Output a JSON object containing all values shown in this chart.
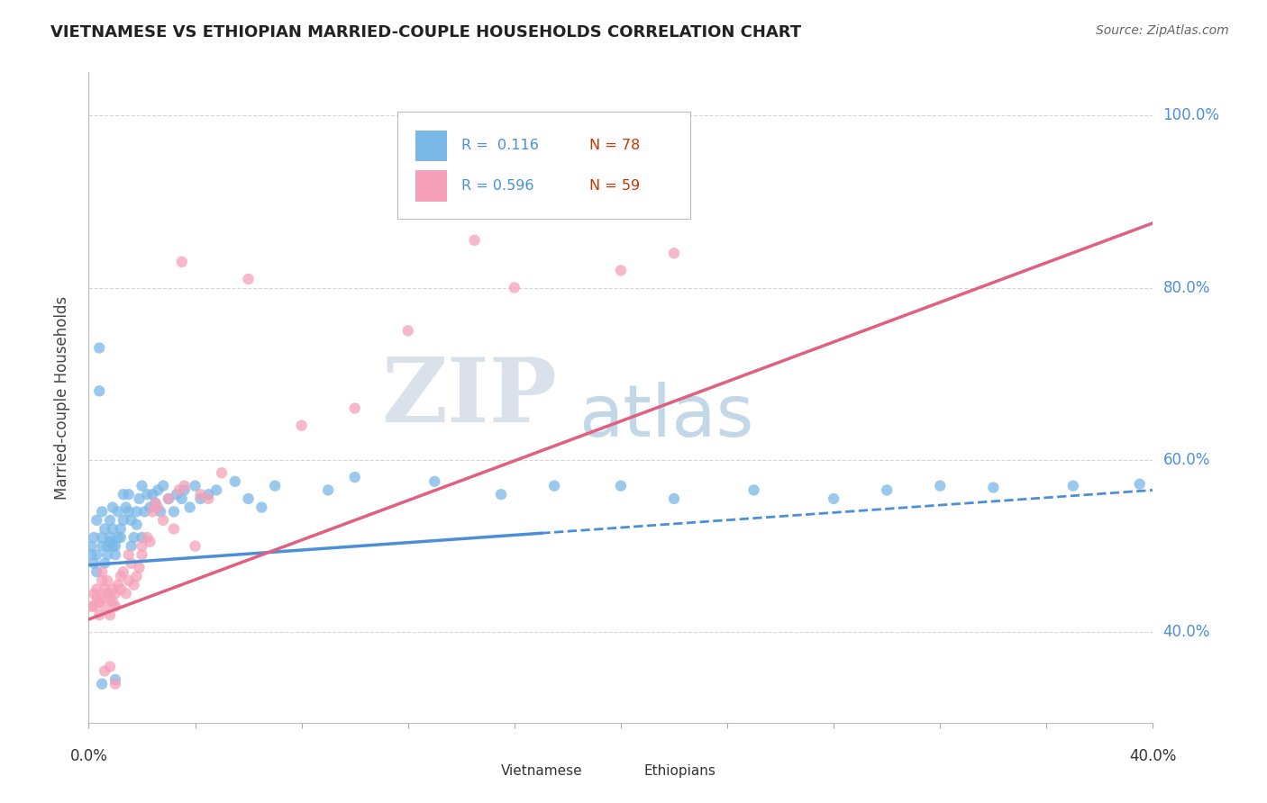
{
  "title": "VIETNAMESE VS ETHIOPIAN MARRIED-COUPLE HOUSEHOLDS CORRELATION CHART",
  "source": "Source: ZipAtlas.com",
  "ylabel": "Married-couple Households",
  "yaxis_labels": [
    "40.0%",
    "60.0%",
    "80.0%",
    "100.0%"
  ],
  "yaxis_values": [
    0.4,
    0.6,
    0.8,
    1.0
  ],
  "r_vietnamese": 0.116,
  "n_vietnamese": 78,
  "r_ethiopian": 0.596,
  "n_ethiopian": 59,
  "color_vietnamese": "#7ab8e8",
  "color_ethiopian": "#f5a0b8",
  "color_trendline_vietnamese": "#4a90d9",
  "color_trendline_ethiopian": "#e06080",
  "watermark_zip": "ZIP",
  "watermark_atlas": "atlas",
  "watermark_color_zip": "#d0dde8",
  "watermark_color_atlas": "#b0cce0",
  "xlim": [
    0.0,
    0.4
  ],
  "ylim": [
    0.295,
    1.05
  ],
  "background_color": "#ffffff",
  "viet_trendline": [
    0.478,
    0.565
  ],
  "eth_trendline": [
    0.415,
    0.875
  ],
  "vietnamese_scatter": [
    [
      0.001,
      0.5
    ],
    [
      0.002,
      0.51
    ],
    [
      0.003,
      0.49
    ],
    [
      0.003,
      0.53
    ],
    [
      0.004,
      0.68
    ],
    [
      0.004,
      0.73
    ],
    [
      0.005,
      0.5
    ],
    [
      0.005,
      0.51
    ],
    [
      0.005,
      0.54
    ],
    [
      0.006,
      0.48
    ],
    [
      0.006,
      0.52
    ],
    [
      0.007,
      0.5
    ],
    [
      0.007,
      0.49
    ],
    [
      0.008,
      0.53
    ],
    [
      0.008,
      0.51
    ],
    [
      0.009,
      0.52
    ],
    [
      0.009,
      0.545
    ],
    [
      0.01,
      0.5
    ],
    [
      0.01,
      0.49
    ],
    [
      0.011,
      0.51
    ],
    [
      0.011,
      0.54
    ],
    [
      0.012,
      0.52
    ],
    [
      0.012,
      0.51
    ],
    [
      0.013,
      0.53
    ],
    [
      0.013,
      0.56
    ],
    [
      0.014,
      0.545
    ],
    [
      0.015,
      0.54
    ],
    [
      0.015,
      0.56
    ],
    [
      0.016,
      0.5
    ],
    [
      0.016,
      0.53
    ],
    [
      0.017,
      0.51
    ],
    [
      0.018,
      0.525
    ],
    [
      0.018,
      0.54
    ],
    [
      0.019,
      0.555
    ],
    [
      0.02,
      0.57
    ],
    [
      0.02,
      0.51
    ],
    [
      0.021,
      0.54
    ],
    [
      0.022,
      0.56
    ],
    [
      0.023,
      0.545
    ],
    [
      0.024,
      0.56
    ],
    [
      0.025,
      0.55
    ],
    [
      0.026,
      0.565
    ],
    [
      0.027,
      0.54
    ],
    [
      0.028,
      0.57
    ],
    [
      0.03,
      0.555
    ],
    [
      0.032,
      0.54
    ],
    [
      0.033,
      0.56
    ],
    [
      0.035,
      0.555
    ],
    [
      0.036,
      0.565
    ],
    [
      0.038,
      0.545
    ],
    [
      0.04,
      0.57
    ],
    [
      0.042,
      0.555
    ],
    [
      0.045,
      0.56
    ],
    [
      0.048,
      0.565
    ],
    [
      0.055,
      0.575
    ],
    [
      0.06,
      0.555
    ],
    [
      0.065,
      0.545
    ],
    [
      0.07,
      0.57
    ],
    [
      0.09,
      0.565
    ],
    [
      0.1,
      0.58
    ],
    [
      0.13,
      0.575
    ],
    [
      0.155,
      0.56
    ],
    [
      0.175,
      0.57
    ],
    [
      0.2,
      0.57
    ],
    [
      0.22,
      0.555
    ],
    [
      0.25,
      0.565
    ],
    [
      0.28,
      0.555
    ],
    [
      0.3,
      0.565
    ],
    [
      0.32,
      0.57
    ],
    [
      0.34,
      0.568
    ],
    [
      0.37,
      0.57
    ],
    [
      0.395,
      0.572
    ],
    [
      0.005,
      0.34
    ],
    [
      0.01,
      0.345
    ],
    [
      0.002,
      0.48
    ],
    [
      0.003,
      0.47
    ],
    [
      0.001,
      0.49
    ],
    [
      0.008,
      0.505
    ],
    [
      0.009,
      0.5
    ]
  ],
  "ethiopian_scatter": [
    [
      0.001,
      0.43
    ],
    [
      0.002,
      0.445
    ],
    [
      0.002,
      0.43
    ],
    [
      0.003,
      0.44
    ],
    [
      0.003,
      0.45
    ],
    [
      0.004,
      0.435
    ],
    [
      0.004,
      0.42
    ],
    [
      0.005,
      0.44
    ],
    [
      0.005,
      0.46
    ],
    [
      0.005,
      0.47
    ],
    [
      0.006,
      0.43
    ],
    [
      0.006,
      0.45
    ],
    [
      0.007,
      0.445
    ],
    [
      0.007,
      0.46
    ],
    [
      0.008,
      0.44
    ],
    [
      0.008,
      0.42
    ],
    [
      0.009,
      0.45
    ],
    [
      0.009,
      0.435
    ],
    [
      0.01,
      0.445
    ],
    [
      0.01,
      0.43
    ],
    [
      0.011,
      0.455
    ],
    [
      0.012,
      0.465
    ],
    [
      0.012,
      0.45
    ],
    [
      0.013,
      0.47
    ],
    [
      0.014,
      0.445
    ],
    [
      0.015,
      0.46
    ],
    [
      0.015,
      0.49
    ],
    [
      0.016,
      0.48
    ],
    [
      0.017,
      0.455
    ],
    [
      0.018,
      0.465
    ],
    [
      0.019,
      0.475
    ],
    [
      0.02,
      0.5
    ],
    [
      0.02,
      0.49
    ],
    [
      0.022,
      0.51
    ],
    [
      0.023,
      0.505
    ],
    [
      0.024,
      0.54
    ],
    [
      0.025,
      0.55
    ],
    [
      0.026,
      0.545
    ],
    [
      0.028,
      0.53
    ],
    [
      0.03,
      0.555
    ],
    [
      0.032,
      0.52
    ],
    [
      0.034,
      0.565
    ],
    [
      0.036,
      0.57
    ],
    [
      0.04,
      0.5
    ],
    [
      0.042,
      0.56
    ],
    [
      0.045,
      0.555
    ],
    [
      0.05,
      0.585
    ],
    [
      0.035,
      0.83
    ],
    [
      0.06,
      0.81
    ],
    [
      0.08,
      0.64
    ],
    [
      0.1,
      0.66
    ],
    [
      0.12,
      0.75
    ],
    [
      0.145,
      0.855
    ],
    [
      0.16,
      0.8
    ],
    [
      0.2,
      0.82
    ],
    [
      0.22,
      0.84
    ],
    [
      0.006,
      0.355
    ],
    [
      0.008,
      0.36
    ],
    [
      0.01,
      0.34
    ]
  ]
}
